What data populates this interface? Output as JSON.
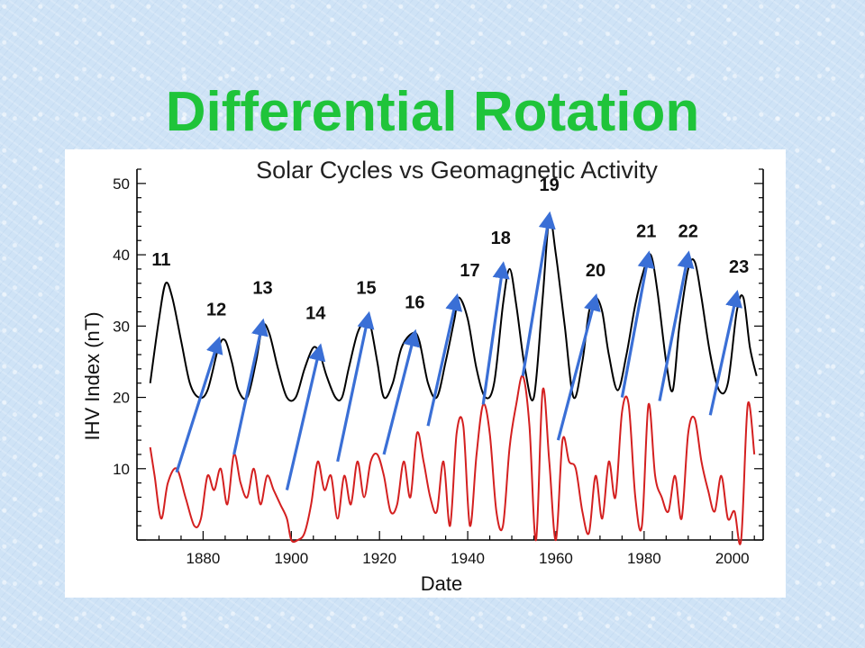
{
  "slide": {
    "title": "Differential Rotation"
  },
  "chart_data": {
    "type": "line",
    "title": "Solar Cycles  vs Geomagnetic Activity",
    "xlabel": "Date",
    "ylabel": "IHV Index (nT)",
    "xlim": [
      1865,
      2007
    ],
    "ylim": [
      0,
      52
    ],
    "xticks": [
      1880,
      1900,
      1920,
      1940,
      1960,
      1980,
      2000
    ],
    "yticks": [
      10,
      20,
      30,
      40,
      50
    ],
    "grid": false,
    "colors": {
      "ihv": "#000000",
      "sunspot": "#d42020",
      "arrows": "#3a6fd6"
    },
    "series": [
      {
        "key": "ihv",
        "x": [
          1868,
          1870,
          1871.5,
          1873,
          1875,
          1877,
          1879,
          1881,
          1883.5,
          1885,
          1886.5,
          1888,
          1890,
          1892,
          1893.5,
          1895,
          1897,
          1899,
          1901,
          1903,
          1905,
          1906.5,
          1908,
          1910,
          1911.5,
          1913,
          1915,
          1917,
          1918,
          1919.5,
          1921,
          1923,
          1925,
          1927.5,
          1929,
          1931,
          1933,
          1935,
          1937,
          1938,
          1940,
          1942,
          1944,
          1946,
          1948,
          1949.5,
          1951,
          1953,
          1955,
          1957,
          1958.5,
          1960,
          1962,
          1964,
          1966,
          1967.5,
          1969,
          1970.5,
          1972,
          1974,
          1976,
          1978,
          1980,
          1981.5,
          1983,
          1985,
          1986.5,
          1988,
          1990,
          1991.5,
          1993,
          1995,
          1997,
          1999,
          2001,
          2002.5,
          2004,
          2005.5
        ],
        "y": [
          22,
          31,
          36,
          34,
          28,
          22,
          20,
          21,
          27,
          28,
          25,
          21,
          20,
          25,
          30,
          29,
          24,
          20,
          20,
          24,
          27,
          26,
          23,
          20,
          20,
          24,
          29,
          31,
          30,
          25,
          20,
          22,
          27,
          29,
          28,
          22,
          20,
          25,
          31,
          34,
          31,
          24,
          20,
          22,
          33,
          38,
          33,
          24,
          20,
          34,
          45,
          40,
          30,
          20,
          25,
          32,
          34,
          32,
          26,
          21,
          26,
          33,
          38,
          40,
          35,
          25,
          21,
          30,
          38,
          39,
          34,
          26,
          21,
          22,
          32,
          34,
          27,
          23
        ]
      },
      {
        "key": "sunspot",
        "x": [
          1868,
          1869,
          1870.5,
          1872,
          1874,
          1876,
          1878,
          1879.5,
          1881,
          1882.5,
          1884,
          1885.5,
          1887,
          1888.5,
          1890,
          1891.5,
          1893,
          1894.5,
          1896,
          1897.5,
          1899,
          1900,
          1901.5,
          1903,
          1904.5,
          1906,
          1907.5,
          1909,
          1910.5,
          1912,
          1913.5,
          1915,
          1916.5,
          1918,
          1919.5,
          1921,
          1922.5,
          1924,
          1925.5,
          1927,
          1928.5,
          1930,
          1931.5,
          1933,
          1934.5,
          1936,
          1937.5,
          1939,
          1940.5,
          1942,
          1943.5,
          1945,
          1946.5,
          1948,
          1949.5,
          1951,
          1952.5,
          1954,
          1955.5,
          1957,
          1958.5,
          1960,
          1961.5,
          1963,
          1964.5,
          1966,
          1967.5,
          1969,
          1970.5,
          1972,
          1973.5,
          1975,
          1976.5,
          1978,
          1979.5,
          1981,
          1982.5,
          1984,
          1985.5,
          1987,
          1988.5,
          1990,
          1991.5,
          1993,
          1994.5,
          1996,
          1997.5,
          1999,
          2000.5,
          2002,
          2003.5,
          2005
        ],
        "y": [
          13,
          9,
          3,
          8,
          10,
          6,
          2,
          3,
          9,
          7,
          10,
          5,
          12,
          8,
          6,
          10,
          5,
          9,
          7,
          5,
          3,
          0,
          0,
          1,
          5,
          11,
          7,
          9,
          3,
          9,
          5,
          11,
          6,
          11,
          12,
          9,
          4,
          5,
          11,
          6,
          15,
          11,
          6,
          4,
          11,
          2,
          15,
          16,
          2,
          12,
          19,
          15,
          4,
          2,
          13,
          19,
          23,
          16,
          0,
          21,
          11,
          0,
          14,
          11,
          10,
          4,
          1,
          9,
          3,
          11,
          6,
          18,
          19,
          6,
          2,
          19,
          9,
          6,
          4,
          9,
          3,
          15,
          17,
          11,
          7,
          4,
          9,
          3,
          4,
          0,
          19,
          12
        ]
      }
    ],
    "arrows": [
      {
        "from": [
          1874,
          9.5
        ],
        "to": [
          1883.5,
          28
        ]
      },
      {
        "from": [
          1887,
          12
        ],
        "to": [
          1893.5,
          30.5
        ]
      },
      {
        "from": [
          1899,
          7
        ],
        "to": [
          1906.5,
          27
        ]
      },
      {
        "from": [
          1910.5,
          11
        ],
        "to": [
          1917.5,
          31.5
        ]
      },
      {
        "from": [
          1921,
          12
        ],
        "to": [
          1928,
          29
        ]
      },
      {
        "from": [
          1931,
          16
        ],
        "to": [
          1937.5,
          34
        ]
      },
      {
        "from": [
          1943.5,
          19
        ],
        "to": [
          1948,
          38.5
        ]
      },
      {
        "from": [
          1952.5,
          23
        ],
        "to": [
          1958.5,
          45.5
        ]
      },
      {
        "from": [
          1960.5,
          14
        ],
        "to": [
          1969,
          34
        ]
      },
      {
        "from": [
          1975,
          20
        ],
        "to": [
          1981,
          40
        ]
      },
      {
        "from": [
          1983.5,
          19.5
        ],
        "to": [
          1990,
          40
        ]
      },
      {
        "from": [
          1995,
          17.5
        ],
        "to": [
          2001,
          34.5
        ]
      }
    ],
    "cycle_labels": [
      {
        "text": "11",
        "x": 1870.5,
        "y": 38.5
      },
      {
        "text": "12",
        "x": 1883,
        "y": 31.5
      },
      {
        "text": "13",
        "x": 1893.5,
        "y": 34.5
      },
      {
        "text": "14",
        "x": 1905.5,
        "y": 31
      },
      {
        "text": "15",
        "x": 1917,
        "y": 34.5
      },
      {
        "text": "16",
        "x": 1928,
        "y": 32.5
      },
      {
        "text": "17",
        "x": 1940.5,
        "y": 37
      },
      {
        "text": "18",
        "x": 1947.5,
        "y": 41.5
      },
      {
        "text": "19",
        "x": 1958.5,
        "y": 49
      },
      {
        "text": "20",
        "x": 1969,
        "y": 37
      },
      {
        "text": "21",
        "x": 1980.5,
        "y": 42.5
      },
      {
        "text": "22",
        "x": 1990,
        "y": 42.5
      },
      {
        "text": "23",
        "x": 2001.5,
        "y": 37.5
      }
    ]
  }
}
